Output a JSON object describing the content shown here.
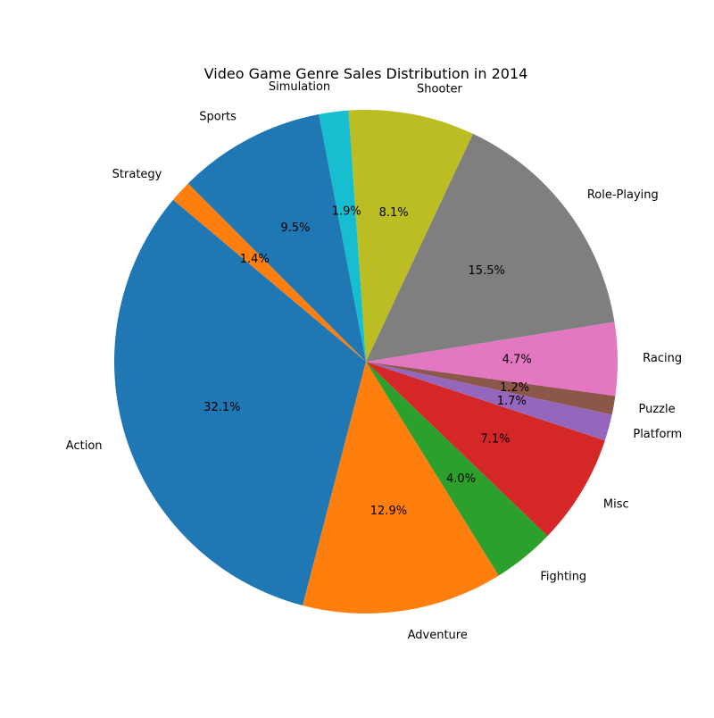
{
  "chart_data": {
    "type": "pie",
    "title": "Video Game Genre Sales Distribution in 2014",
    "slices": [
      {
        "label": "Action",
        "value": 32.1,
        "pct_label": "32.1%",
        "color": "#1f77b4"
      },
      {
        "label": "Adventure",
        "value": 12.9,
        "pct_label": "12.9%",
        "color": "#ff7f0e"
      },
      {
        "label": "Fighting",
        "value": 4.0,
        "pct_label": "4.0%",
        "color": "#2ca02c"
      },
      {
        "label": "Misc",
        "value": 7.1,
        "pct_label": "7.1%",
        "color": "#d62728"
      },
      {
        "label": "Platform",
        "value": 1.7,
        "pct_label": "1.7%",
        "color": "#9467bd"
      },
      {
        "label": "Puzzle",
        "value": 1.2,
        "pct_label": "1.2%",
        "color": "#8c564b"
      },
      {
        "label": "Racing",
        "value": 4.7,
        "pct_label": "4.7%",
        "color": "#e377c2"
      },
      {
        "label": "Role-Playing",
        "value": 15.5,
        "pct_label": "15.5%",
        "color": "#7f7f7f"
      },
      {
        "label": "Shooter",
        "value": 8.1,
        "pct_label": "8.1%",
        "color": "#bcbd22"
      },
      {
        "label": "Simulation",
        "value": 1.9,
        "pct_label": "1.9%",
        "color": "#17becf"
      },
      {
        "label": "Sports",
        "value": 9.5,
        "pct_label": "9.5%",
        "color": "#1f77b4"
      },
      {
        "label": "Strategy",
        "value": 1.4,
        "pct_label": "1.4%",
        "color": "#ff7f0e"
      }
    ],
    "direction": "counterclockwise",
    "legend": "none"
  }
}
